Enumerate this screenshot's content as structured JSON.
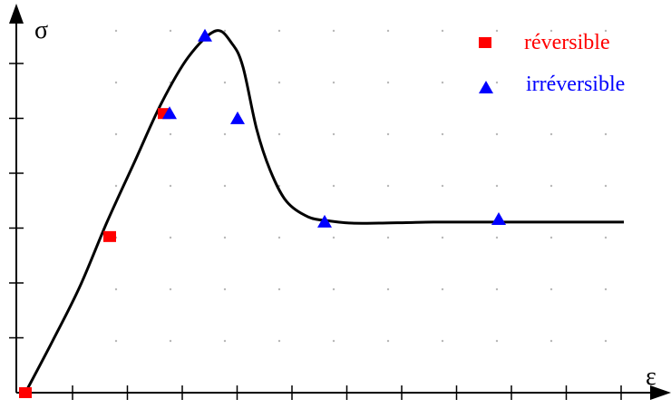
{
  "chart_data": {
    "type": "line",
    "xlabel": "ε",
    "ylabel": "σ",
    "grid": "dotted",
    "legend": "top-right",
    "xlim": [
      0,
      11.8
    ],
    "ylim": [
      0,
      7
    ],
    "curve": {
      "x": [
        0,
        0.5,
        1,
        1.5,
        2,
        2.5,
        3,
        3.5,
        3.8,
        4,
        4.25,
        4.5,
        4.8,
        5.2,
        5.6,
        6,
        6.5,
        7,
        7.5,
        8,
        9,
        10,
        11
      ],
      "y": [
        0,
        1.0,
        2.05,
        3.3,
        4.45,
        5.6,
        6.5,
        7.0,
        6.75,
        6.3,
        5.1,
        4.3,
        3.7,
        3.4,
        3.32,
        3.28,
        3.28,
        3.29,
        3.3,
        3.3,
        3.3,
        3.3,
        3.3
      ]
    },
    "series": [
      {
        "name": "réversible",
        "marker": "square",
        "color": "#ff0000",
        "x": [
          0,
          1.55,
          2.55
        ],
        "y": [
          0,
          3.02,
          5.4
        ]
      },
      {
        "name": "irréversible",
        "marker": "triangle",
        "color": "#0000ff",
        "x": [
          2.65,
          3.3,
          3.9,
          5.5,
          8.7
        ],
        "y": [
          5.4,
          6.9,
          5.3,
          3.3,
          3.35
        ]
      }
    ]
  }
}
